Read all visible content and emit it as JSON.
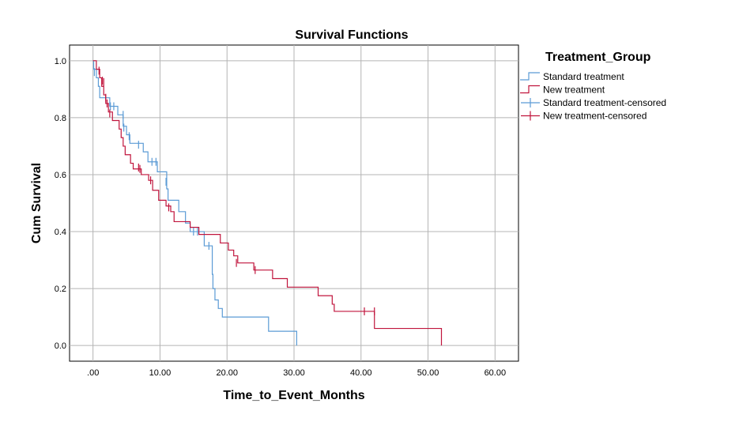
{
  "chart_data": {
    "type": "line",
    "subtype": "kaplan-meier step",
    "title": "Survival Functions",
    "xlabel": "Time_to_Event_Months",
    "ylabel": "Cum Survival",
    "xlim": [
      -3.5,
      63.5
    ],
    "ylim": [
      -0.055,
      1.055
    ],
    "x_ticks": [
      0,
      10,
      20,
      30,
      40,
      50,
      60
    ],
    "x_tick_labels": [
      ".00",
      "10.00",
      "20.00",
      "30.00",
      "40.00",
      "50.00",
      "60.00"
    ],
    "y_ticks": [
      0,
      0.2,
      0.4,
      0.6,
      0.8,
      1.0
    ],
    "y_tick_labels": [
      "0.0",
      "0.2",
      "0.4",
      "0.6",
      "0.8",
      "1.0"
    ],
    "grid": true,
    "legend": {
      "title": "Treatment_Group",
      "position": "right",
      "entries": [
        {
          "label": "Standard treatment",
          "color": "#5b9bd5",
          "kind": "step"
        },
        {
          "label": "New treatment",
          "color": "#c0143c",
          "kind": "step"
        },
        {
          "label": "Standard treatment-censored",
          "color": "#5b9bd5",
          "kind": "censor"
        },
        {
          "label": "New treatment-censored",
          "color": "#c0143c",
          "kind": "censor"
        }
      ]
    },
    "series": [
      {
        "name": "Standard treatment",
        "color": "#5b9bd5",
        "steps": [
          [
            0,
            1.0
          ],
          [
            0.1,
            0.97
          ],
          [
            0.5,
            0.94
          ],
          [
            0.8,
            0.91
          ],
          [
            1.0,
            0.87
          ],
          [
            2.5,
            0.84
          ],
          [
            3.7,
            0.81
          ],
          [
            4.5,
            0.77
          ],
          [
            5.0,
            0.74
          ],
          [
            5.5,
            0.71
          ],
          [
            7.5,
            0.68
          ],
          [
            8.2,
            0.645
          ],
          [
            9.6,
            0.61
          ],
          [
            11.0,
            0.55
          ],
          [
            11.2,
            0.51
          ],
          [
            12.8,
            0.47
          ],
          [
            13.8,
            0.43
          ],
          [
            14.5,
            0.4
          ],
          [
            16.6,
            0.35
          ],
          [
            17.8,
            0.25
          ],
          [
            17.9,
            0.2
          ],
          [
            18.2,
            0.16
          ],
          [
            18.7,
            0.13
          ],
          [
            19.3,
            0.1
          ],
          [
            26.2,
            0.05
          ],
          [
            30.4,
            0.0
          ]
        ],
        "end_x": 30.4,
        "censored": [
          [
            0.2,
            0.96
          ],
          [
            2.6,
            0.84
          ],
          [
            3.1,
            0.84
          ],
          [
            4.5,
            0.81
          ],
          [
            4.6,
            0.765
          ],
          [
            5.4,
            0.735
          ],
          [
            6.8,
            0.705
          ],
          [
            8.8,
            0.645
          ],
          [
            9.4,
            0.645
          ],
          [
            10.9,
            0.575
          ],
          [
            15.0,
            0.4
          ],
          [
            15.6,
            0.4
          ],
          [
            17.3,
            0.35
          ]
        ]
      },
      {
        "name": "New treatment",
        "color": "#c0143c",
        "steps": [
          [
            0,
            1.0
          ],
          [
            0.5,
            0.97
          ],
          [
            1.0,
            0.94
          ],
          [
            1.3,
            0.91
          ],
          [
            1.6,
            0.88
          ],
          [
            1.9,
            0.85
          ],
          [
            2.3,
            0.82
          ],
          [
            2.9,
            0.79
          ],
          [
            3.9,
            0.76
          ],
          [
            4.2,
            0.73
          ],
          [
            4.5,
            0.7
          ],
          [
            4.8,
            0.67
          ],
          [
            5.6,
            0.64
          ],
          [
            6.0,
            0.62
          ],
          [
            7.2,
            0.6
          ],
          [
            8.3,
            0.58
          ],
          [
            8.9,
            0.545
          ],
          [
            9.8,
            0.51
          ],
          [
            10.9,
            0.49
          ],
          [
            11.6,
            0.47
          ],
          [
            12.1,
            0.435
          ],
          [
            14.5,
            0.415
          ],
          [
            15.8,
            0.39
          ],
          [
            19.0,
            0.36
          ],
          [
            20.2,
            0.335
          ],
          [
            21.0,
            0.315
          ],
          [
            21.6,
            0.29
          ],
          [
            24.0,
            0.265
          ],
          [
            26.8,
            0.235
          ],
          [
            29.0,
            0.205
          ],
          [
            33.6,
            0.175
          ],
          [
            35.7,
            0.145
          ],
          [
            36.0,
            0.12
          ],
          [
            42.0,
            0.06
          ],
          [
            52.0,
            0.0
          ]
        ],
        "end_x": 52.0,
        "censored": [
          [
            0.9,
            0.965
          ],
          [
            1.4,
            0.93
          ],
          [
            1.6,
            0.925
          ],
          [
            1.9,
            0.87
          ],
          [
            2.1,
            0.85
          ],
          [
            2.5,
            0.815
          ],
          [
            6.8,
            0.625
          ],
          [
            7.0,
            0.62
          ],
          [
            8.6,
            0.58
          ],
          [
            11.3,
            0.485
          ],
          [
            21.4,
            0.29
          ],
          [
            24.2,
            0.265
          ],
          [
            40.5,
            0.12
          ],
          [
            42.0,
            0.12
          ]
        ]
      }
    ]
  }
}
